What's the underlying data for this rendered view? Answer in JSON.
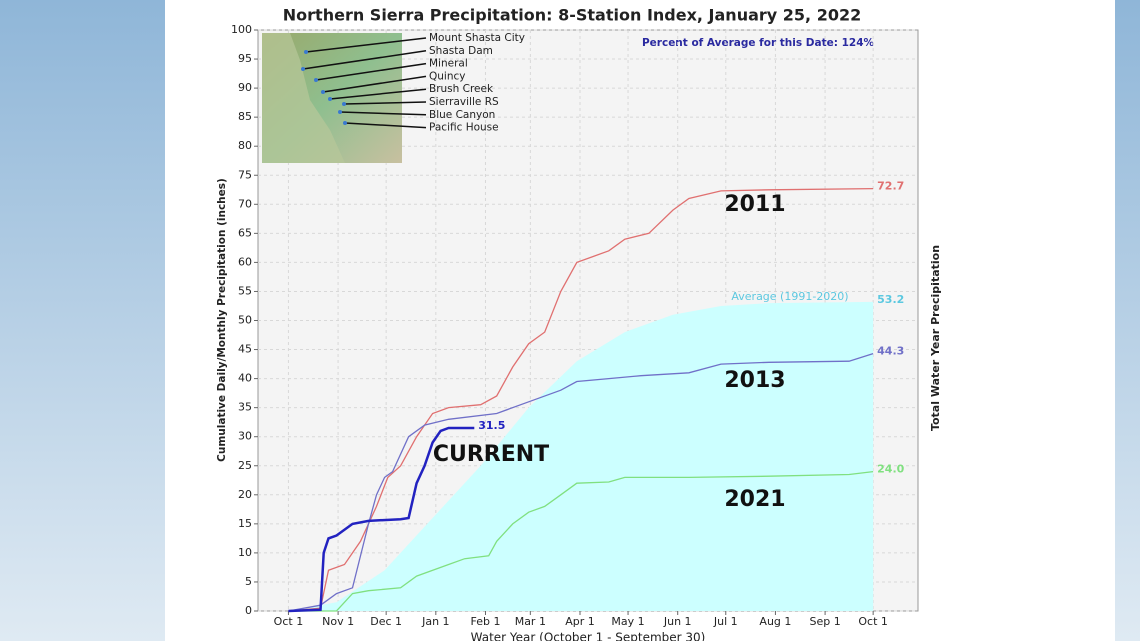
{
  "chart_data": {
    "type": "line",
    "title": "Northern Sierra Precipitation: 8-Station Index, January 25, 2022",
    "subtitle": "Percent of Average for this Date: 124%",
    "y_label": "Cumulative Daily/Monthly Precipitation (inches)",
    "y2_label": "Total Water Year Precipitation",
    "x_label": "Water Year (October 1 - September 30)",
    "xlim": [
      -19,
      393
    ],
    "ylim": [
      0,
      100
    ],
    "xticks": [
      {
        "value": 0,
        "label": "Oct 1"
      },
      {
        "value": 31,
        "label": "Nov 1"
      },
      {
        "value": 61,
        "label": "Dec 1"
      },
      {
        "value": 92,
        "label": "Jan 1"
      },
      {
        "value": 123,
        "label": "Feb 1"
      },
      {
        "value": 151,
        "label": "Mar 1"
      },
      {
        "value": 182,
        "label": "Apr 1"
      },
      {
        "value": 212,
        "label": "May 1"
      },
      {
        "value": 243,
        "label": "Jun 1"
      },
      {
        "value": 273,
        "label": "Jul 1"
      },
      {
        "value": 304,
        "label": "Aug 1"
      },
      {
        "value": 335,
        "label": "Sep 1"
      },
      {
        "value": 365,
        "label": "Oct 1"
      }
    ],
    "yticks": [
      0,
      5,
      10,
      15,
      20,
      25,
      30,
      35,
      40,
      45,
      50,
      55,
      60,
      65,
      70,
      75,
      80,
      85,
      90,
      95,
      100
    ],
    "grid": true,
    "series": [
      {
        "name": "Average (1991-2020)",
        "color": "#5cc8e0",
        "area_color": "#ccffff",
        "area": true,
        "end_label": "53.2",
        "x": [
          0,
          30,
          60,
          90,
          120,
          150,
          180,
          210,
          240,
          270,
          300,
          365
        ],
        "values": [
          0,
          1.5,
          7,
          16,
          25,
          35,
          43,
          48,
          51,
          52.5,
          53,
          53.2
        ]
      },
      {
        "name": "2011",
        "color": "#e07070",
        "end_label": "72.7",
        "x": [
          0,
          20,
          25,
          35,
          45,
          55,
          62,
          70,
          80,
          90,
          100,
          120,
          130,
          140,
          150,
          160,
          170,
          180,
          190,
          200,
          210,
          225,
          240,
          250,
          270,
          300,
          365
        ],
        "values": [
          0,
          0.5,
          7,
          8,
          12,
          18,
          23,
          25,
          30,
          34,
          35,
          35.5,
          37,
          42,
          46,
          48,
          55,
          60,
          61,
          62,
          64,
          65,
          69,
          71,
          72.3,
          72.5,
          72.7
        ]
      },
      {
        "name": "2013",
        "color": "#7070c8",
        "end_label": "44.3",
        "x": [
          0,
          20,
          30,
          40,
          50,
          55,
          60,
          65,
          75,
          85,
          100,
          130,
          150,
          170,
          180,
          200,
          220,
          250,
          270,
          300,
          350,
          365
        ],
        "values": [
          0,
          1,
          3,
          4,
          15,
          20,
          23,
          24,
          30,
          32,
          33,
          34,
          36,
          38,
          39.5,
          40,
          40.5,
          41,
          42.5,
          42.8,
          43,
          44.3
        ]
      },
      {
        "name": "2021",
        "color": "#80e080",
        "end_label": "24.0",
        "x": [
          0,
          30,
          40,
          50,
          70,
          80,
          100,
          110,
          125,
          130,
          140,
          150,
          160,
          170,
          180,
          200,
          210,
          250,
          300,
          350,
          365
        ],
        "values": [
          0,
          0,
          3,
          3.5,
          4,
          6,
          8,
          9,
          9.5,
          12,
          15,
          17,
          18,
          20,
          22,
          22.2,
          23,
          23,
          23.2,
          23.5,
          24
        ]
      },
      {
        "name": "CURRENT",
        "color": "#2222c0",
        "width": 2.5,
        "end_label": "31.5",
        "x": [
          0,
          20,
          22,
          25,
          30,
          40,
          50,
          70,
          75,
          80,
          85,
          90,
          95,
          100,
          116
        ],
        "values": [
          0,
          0.2,
          10,
          12.5,
          13,
          15,
          15.5,
          15.8,
          16,
          22,
          25,
          29,
          31,
          31.5,
          31.5
        ]
      }
    ],
    "inset_stations": [
      "Mount Shasta City",
      "Shasta Dam",
      "Mineral",
      "Quincy",
      "Brush Creek",
      "Sierraville RS",
      "Blue Canyon",
      "Pacific House"
    ]
  }
}
